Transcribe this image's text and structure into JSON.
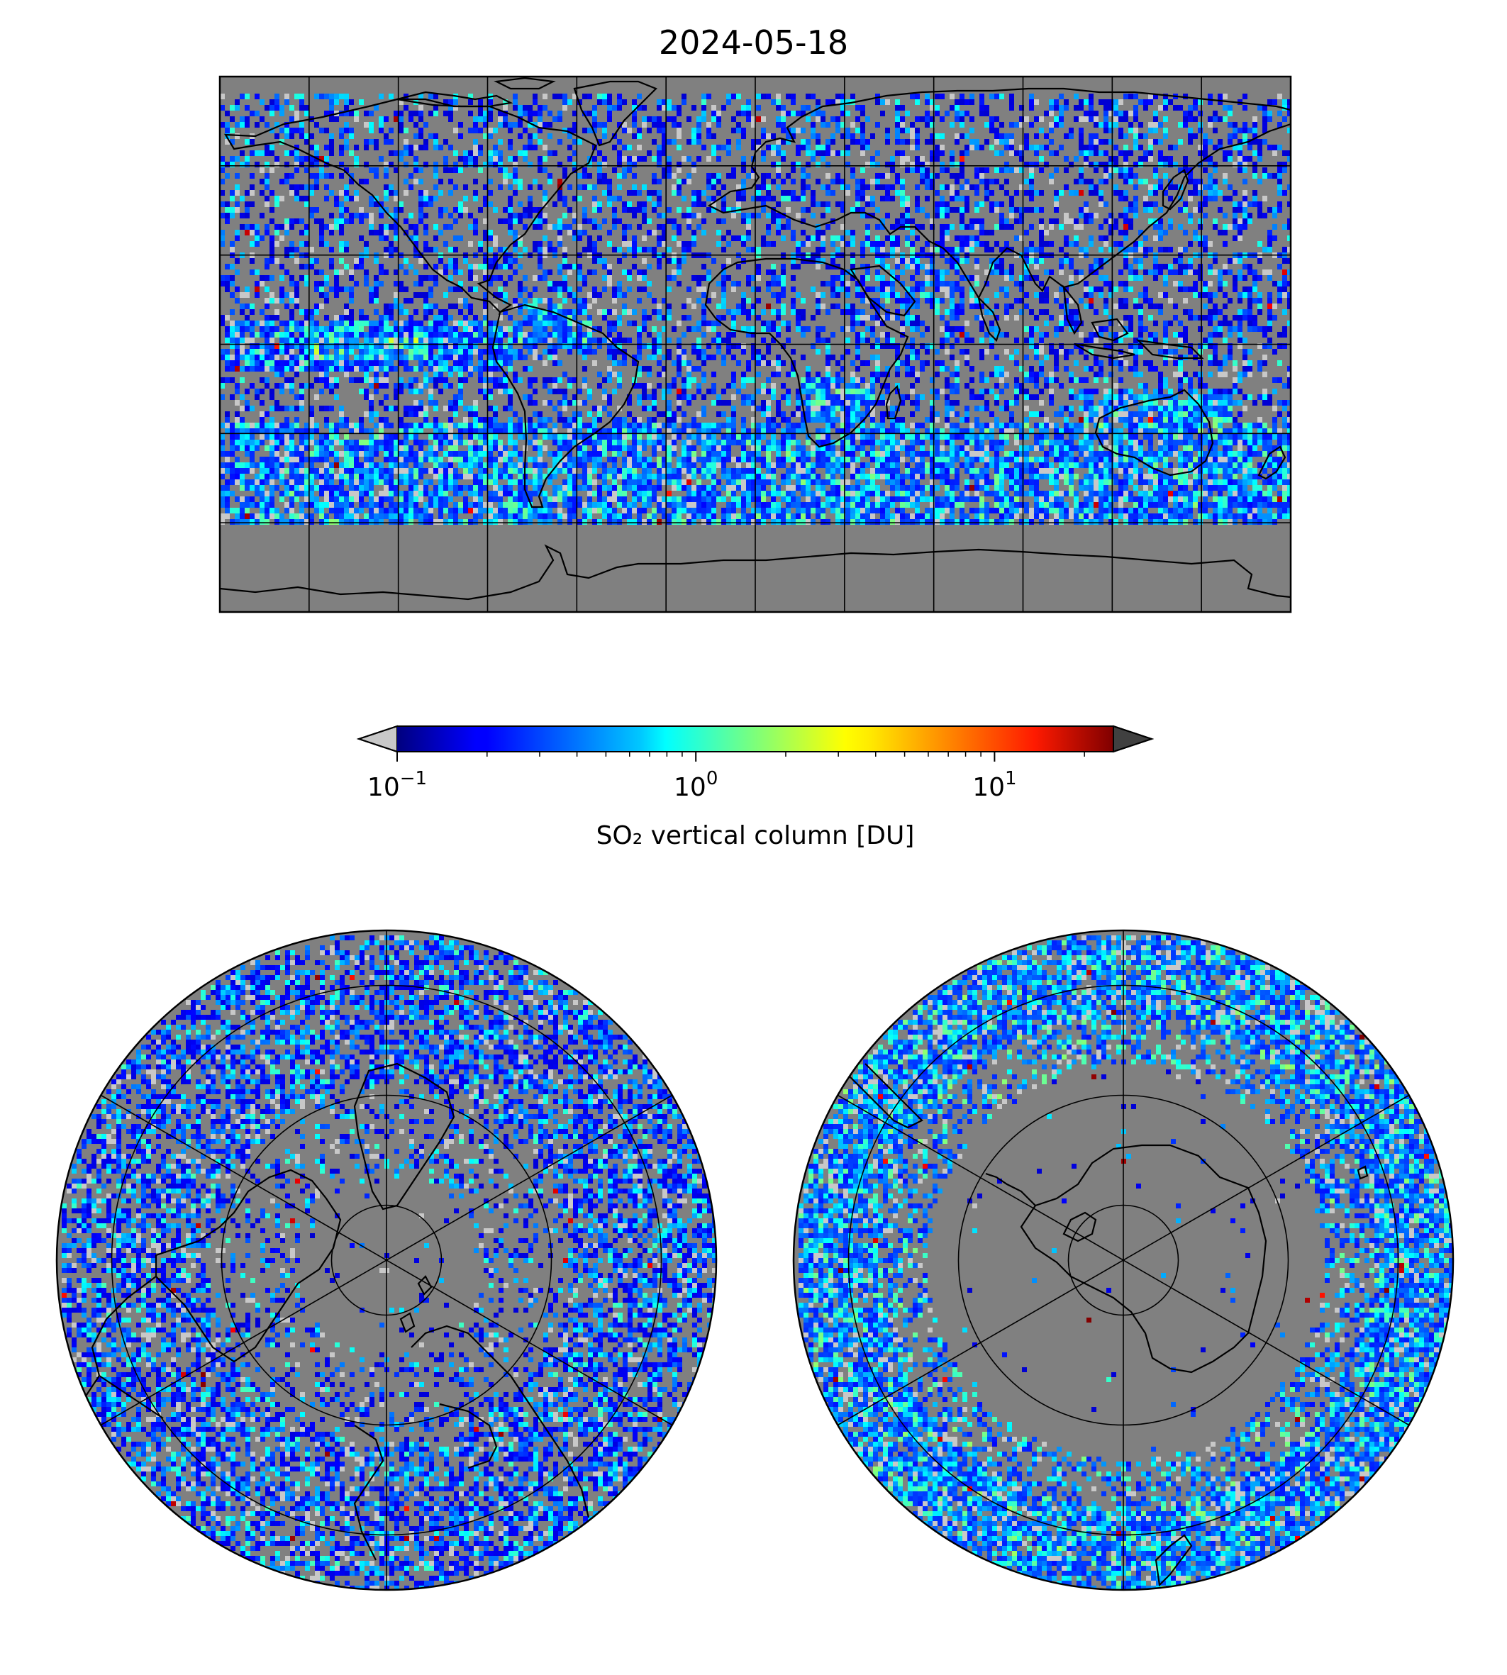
{
  "figure": {
    "title": "2024-05-18"
  },
  "colors": {
    "land_ocean_fill": "#808080",
    "no_retrieval": "#c8c8c8",
    "coastline": "#000000",
    "gridline": "#000000",
    "colormap": "jet",
    "under_color": "#c8c8c8",
    "over_color": "#404040"
  },
  "colorbar": {
    "label": "SO₂ vertical column [DU]",
    "scale": "log",
    "range": [
      0.1,
      25
    ],
    "extend": "both",
    "orientation": "horizontal",
    "ticks": [
      {
        "value": 0.1,
        "base": "10",
        "exp": "−1"
      },
      {
        "value": 1,
        "base": "10",
        "exp": "0"
      },
      {
        "value": 10,
        "base": "10",
        "exp": "1"
      }
    ]
  },
  "maps": [
    {
      "name": "global",
      "projection": "PlateCarree",
      "lon_range": [
        -180,
        180
      ],
      "lat_range": [
        -90,
        90
      ],
      "gridlines_lon_every_deg": 30,
      "gridlines_lat_every_deg": 30,
      "enhanced_regions": [
        "tropical Pacific band near equator",
        "Caribbean",
        "southern Africa",
        "southern mid-latitude streaks",
        "Australia"
      ]
    },
    {
      "name": "north-polar",
      "projection": "NorthPolarStereo",
      "lat_min": 30,
      "gridline_latitudes": [
        40,
        60,
        80
      ],
      "meridians_every_deg": 60
    },
    {
      "name": "south-polar",
      "projection": "SouthPolarStereo",
      "lat_max": -30,
      "gridline_latitudes": [
        -40,
        -60,
        -80
      ],
      "meridians_every_deg": 60
    }
  ]
}
